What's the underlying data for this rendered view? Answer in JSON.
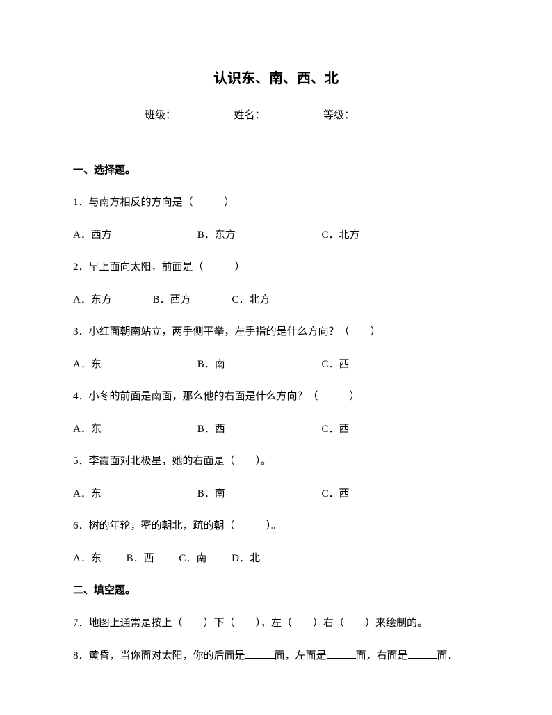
{
  "title": "认识东、南、西、北",
  "header": {
    "class_label": "班级：",
    "name_label": "姓名：",
    "grade_label": "等级："
  },
  "section1": {
    "heading": "一、选择题。",
    "q1": {
      "text": "1．与南方相反的方向是（　　　）",
      "a": "A．西方",
      "b": "B．东方",
      "c": "C．北方"
    },
    "q2": {
      "text": "2．早上面向太阳，前面是（　　　）",
      "a": "A．东方",
      "b": "B．西方",
      "c": "C．北方"
    },
    "q3": {
      "text": "3．小红面朝南站立，两手侧平举，左手指的是什么方向？（　　）",
      "a": "A．东",
      "b": "B．南",
      "c": "C．西"
    },
    "q4": {
      "text": "4．小冬的前面是南面，那么他的右面是什么方向？（　　　）",
      "a": "A．东",
      "b": "B．西",
      "c": "C．西"
    },
    "q5": {
      "text": "5．李霞面对北极星，她的右面是（　　）。",
      "a": "A．东",
      "b": "B．南",
      "c": "C．西"
    },
    "q6": {
      "text": "6．树的年轮，密的朝北，疏的朝（　　　）。",
      "a": "A．东",
      "b": "B．西",
      "c": "C．南",
      "d": "D．北"
    }
  },
  "section2": {
    "heading": "二、填空题。",
    "q7": "7．地图上通常是按上（　　）下（　　），左（　　）右（　　）来绘制的。",
    "q8_part1": "8．黄昏，当你面对太阳，你的后面是",
    "q8_part2": "面，左面是",
    "q8_part3": "面，右面是",
    "q8_part4": "面．"
  }
}
